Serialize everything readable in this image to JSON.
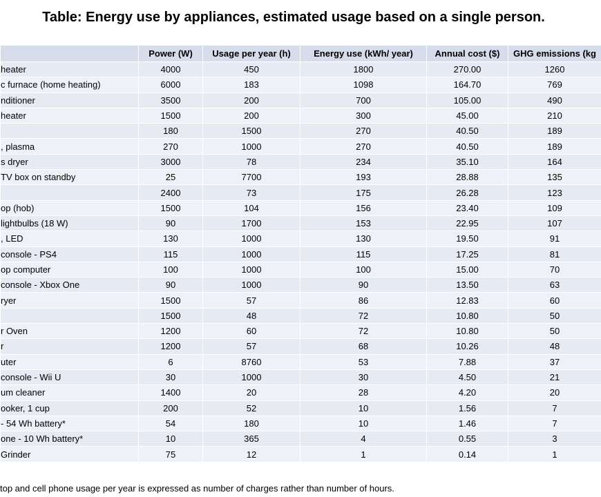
{
  "title": "Table: Energy use by appliances, estimated usage based on a single person.",
  "table": {
    "header": [
      null,
      "Power (W)",
      "Usage per year (h)",
      "Energy use (kWh/ year)",
      "Annual cost ($)",
      "GHG emissions (kg"
    ],
    "rows": [
      [
        "heater",
        "4000",
        "450",
        "1800",
        "270.00",
        "1260"
      ],
      [
        "c furnace (home heating)",
        "6000",
        "183",
        "1098",
        "164.70",
        "769"
      ],
      [
        "nditioner",
        "3500",
        "200",
        "700",
        "105.00",
        "490"
      ],
      [
        "heater",
        "1500",
        "200",
        "300",
        "45.00",
        "210"
      ],
      [
        null,
        "180",
        "1500",
        "270",
        "40.50",
        "189"
      ],
      [
        ", plasma",
        "270",
        "1000",
        "270",
        "40.50",
        "189"
      ],
      [
        "s dryer",
        "3000",
        "78",
        "234",
        "35.10",
        "164"
      ],
      [
        "TV box on standby",
        "25",
        "7700",
        "193",
        "28.88",
        "135"
      ],
      [
        null,
        "2400",
        "73",
        "175",
        "26.28",
        "123"
      ],
      [
        "op (hob)",
        "1500",
        "104",
        "156",
        "23.40",
        "109"
      ],
      [
        " lightbulbs (18 W)",
        "90",
        "1700",
        "153",
        "22.95",
        "107"
      ],
      [
        ", LED",
        "130",
        "1000",
        "130",
        "19.50",
        "91"
      ],
      [
        "console - PS4",
        "115",
        "1000",
        "115",
        "17.25",
        "81"
      ],
      [
        "op computer",
        "100",
        "1000",
        "100",
        "15.00",
        "70"
      ],
      [
        "console - Xbox One",
        "90",
        "1000",
        "90",
        "13.50",
        "63"
      ],
      [
        "ryer",
        "1500",
        "57",
        "86",
        "12.83",
        "60"
      ],
      [
        null,
        "1500",
        "48",
        "72",
        "10.80",
        "50"
      ],
      [
        "r Oven",
        "1200",
        "60",
        "72",
        "10.80",
        "50"
      ],
      [
        "r",
        "1200",
        "57",
        "68",
        "10.26",
        "48"
      ],
      [
        "uter",
        "6",
        "8760",
        "53",
        "7.88",
        "37"
      ],
      [
        "console - Wii U",
        "30",
        "1000",
        "30",
        "4.50",
        "21"
      ],
      [
        "um cleaner",
        "1400",
        "20",
        "28",
        "4.20",
        "20"
      ],
      [
        "ooker, 1 cup",
        "200",
        "52",
        "10",
        "1.56",
        "7"
      ],
      [
        " - 54 Wh battery*",
        "54",
        "180",
        "10",
        "1.46",
        "7"
      ],
      [
        "one - 10 Wh battery*",
        "10",
        "365",
        "4",
        "0.55",
        "3"
      ],
      [
        " Grinder",
        "75",
        "12",
        "1",
        "0.14",
        "1"
      ]
    ]
  },
  "footnote": "top and cell phone usage per year is expressed as number of charges rather than number of hours."
}
